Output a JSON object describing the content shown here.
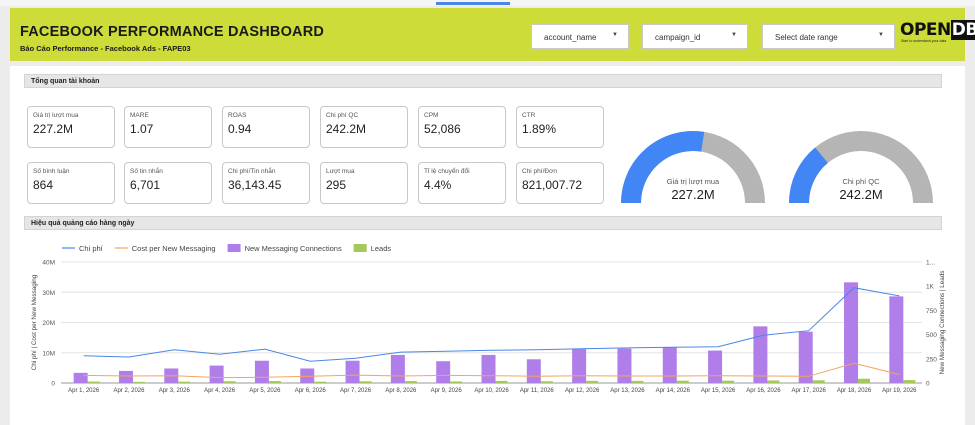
{
  "header": {
    "title": "FACEBOOK PERFORMANCE DASHBOARD",
    "subtitle": "Báo Cáo Performance - Facebook Ads - FAPE03",
    "filters": [
      {
        "label": "account_name"
      },
      {
        "label": "campaign_id"
      },
      {
        "label": "Select date range"
      }
    ],
    "logo_text": "OPEN DB",
    "logo_tagline": "Start to understand your data"
  },
  "overview": {
    "section_title": "Tổng quan tài khoản",
    "metrics": [
      {
        "label": "Giá trị lượt mua",
        "value": "227.2M"
      },
      {
        "label": "MARE",
        "value": "1.07"
      },
      {
        "label": "ROAS",
        "value": "0.94"
      },
      {
        "label": "Chi phí QC",
        "value": "242.2M"
      },
      {
        "label": "CPM",
        "value": "52,086"
      },
      {
        "label": "CTR",
        "value": "1.89%"
      },
      {
        "label": "Số bình luận",
        "value": "864"
      },
      {
        "label": "Số tin nhắn",
        "value": "6,701"
      },
      {
        "label": "Chi phí/Tin nhắn",
        "value": "36,143.45"
      },
      {
        "label": "Lượt mua",
        "value": "295"
      },
      {
        "label": "Tỉ lệ chuyển đổi",
        "value": "4.4%"
      },
      {
        "label": "Chi phí/Đơn",
        "value": "821,007.72"
      }
    ],
    "gauges": [
      {
        "label": "Giá trị lượt mua",
        "value": "227.2M",
        "fill": 0.55,
        "color": "#4285f4"
      },
      {
        "label": "Chi phí QC",
        "value": "242.2M",
        "fill": 0.28,
        "color": "#4285f4"
      }
    ]
  },
  "daily": {
    "section_title": "Hiệu quả quảng cáo hàng ngày"
  },
  "colors": {
    "accent": "#cddc39",
    "line_blue": "#4a86e8",
    "line_orange": "#f4a460",
    "bar_purple": "#b07ee8",
    "bar_green": "#a5c85a"
  },
  "chart_data": {
    "type": "bar",
    "categories": [
      "Apr 1, 2026",
      "Apr 2, 2026",
      "Apr 3, 2026",
      "Apr 4, 2026",
      "Apr 5, 2026",
      "Apr 6, 2026",
      "Apr 7, 2026",
      "Apr 8, 2026",
      "Apr 9, 2026",
      "Apr 10, 2026",
      "Apr 11, 2026",
      "Apr 12, 2026",
      "Apr 13, 2026",
      "Apr 14, 2026",
      "Apr 15, 2026",
      "Apr 16, 2026",
      "Apr 17, 2026",
      "Apr 18, 2026",
      "Apr 19, 2026"
    ],
    "left_axis": {
      "label": "Chi phí | Cost per New Messaging",
      "ticks": [
        "0",
        "10M",
        "20M",
        "30M",
        "40M"
      ],
      "ylim": [
        0,
        40000000
      ]
    },
    "right_axis": {
      "label": "New Messaging Connections | Leads",
      "ticks": [
        "0",
        "250",
        "500",
        "750",
        "1K",
        "1..."
      ],
      "ylim": [
        0,
        1250
      ]
    },
    "series": [
      {
        "name": "Chi phí",
        "kind": "line",
        "axis": "left",
        "values": [
          9000000,
          8600000,
          11000000,
          9500000,
          11200000,
          7200000,
          8200000,
          10200000,
          10500000,
          10800000,
          11000000,
          11300000,
          11600000,
          11800000,
          12000000,
          15800000,
          17300000,
          31500000,
          28800000
        ]
      },
      {
        "name": "Cost per New Messaging",
        "kind": "line",
        "axis": "left",
        "values": [
          2500000,
          2300000,
          2400000,
          1800000,
          1900000,
          2200000,
          2600000,
          2300000,
          2500000,
          2400000,
          2200000,
          2400000,
          2300000,
          2300000,
          2400000,
          2300000,
          2200000,
          6500000,
          2800000
        ]
      },
      {
        "name": "New Messaging Connections",
        "kind": "bar",
        "axis": "right",
        "values": [
          105,
          125,
          150,
          180,
          230,
          150,
          230,
          290,
          225,
          290,
          245,
          350,
          355,
          370,
          335,
          585,
          530,
          1040,
          895
        ]
      },
      {
        "name": "Leads",
        "kind": "bar",
        "axis": "right",
        "values": [
          15,
          12,
          14,
          18,
          20,
          14,
          18,
          20,
          16,
          22,
          18,
          22,
          22,
          24,
          24,
          26,
          28,
          44,
          30
        ]
      }
    ]
  }
}
